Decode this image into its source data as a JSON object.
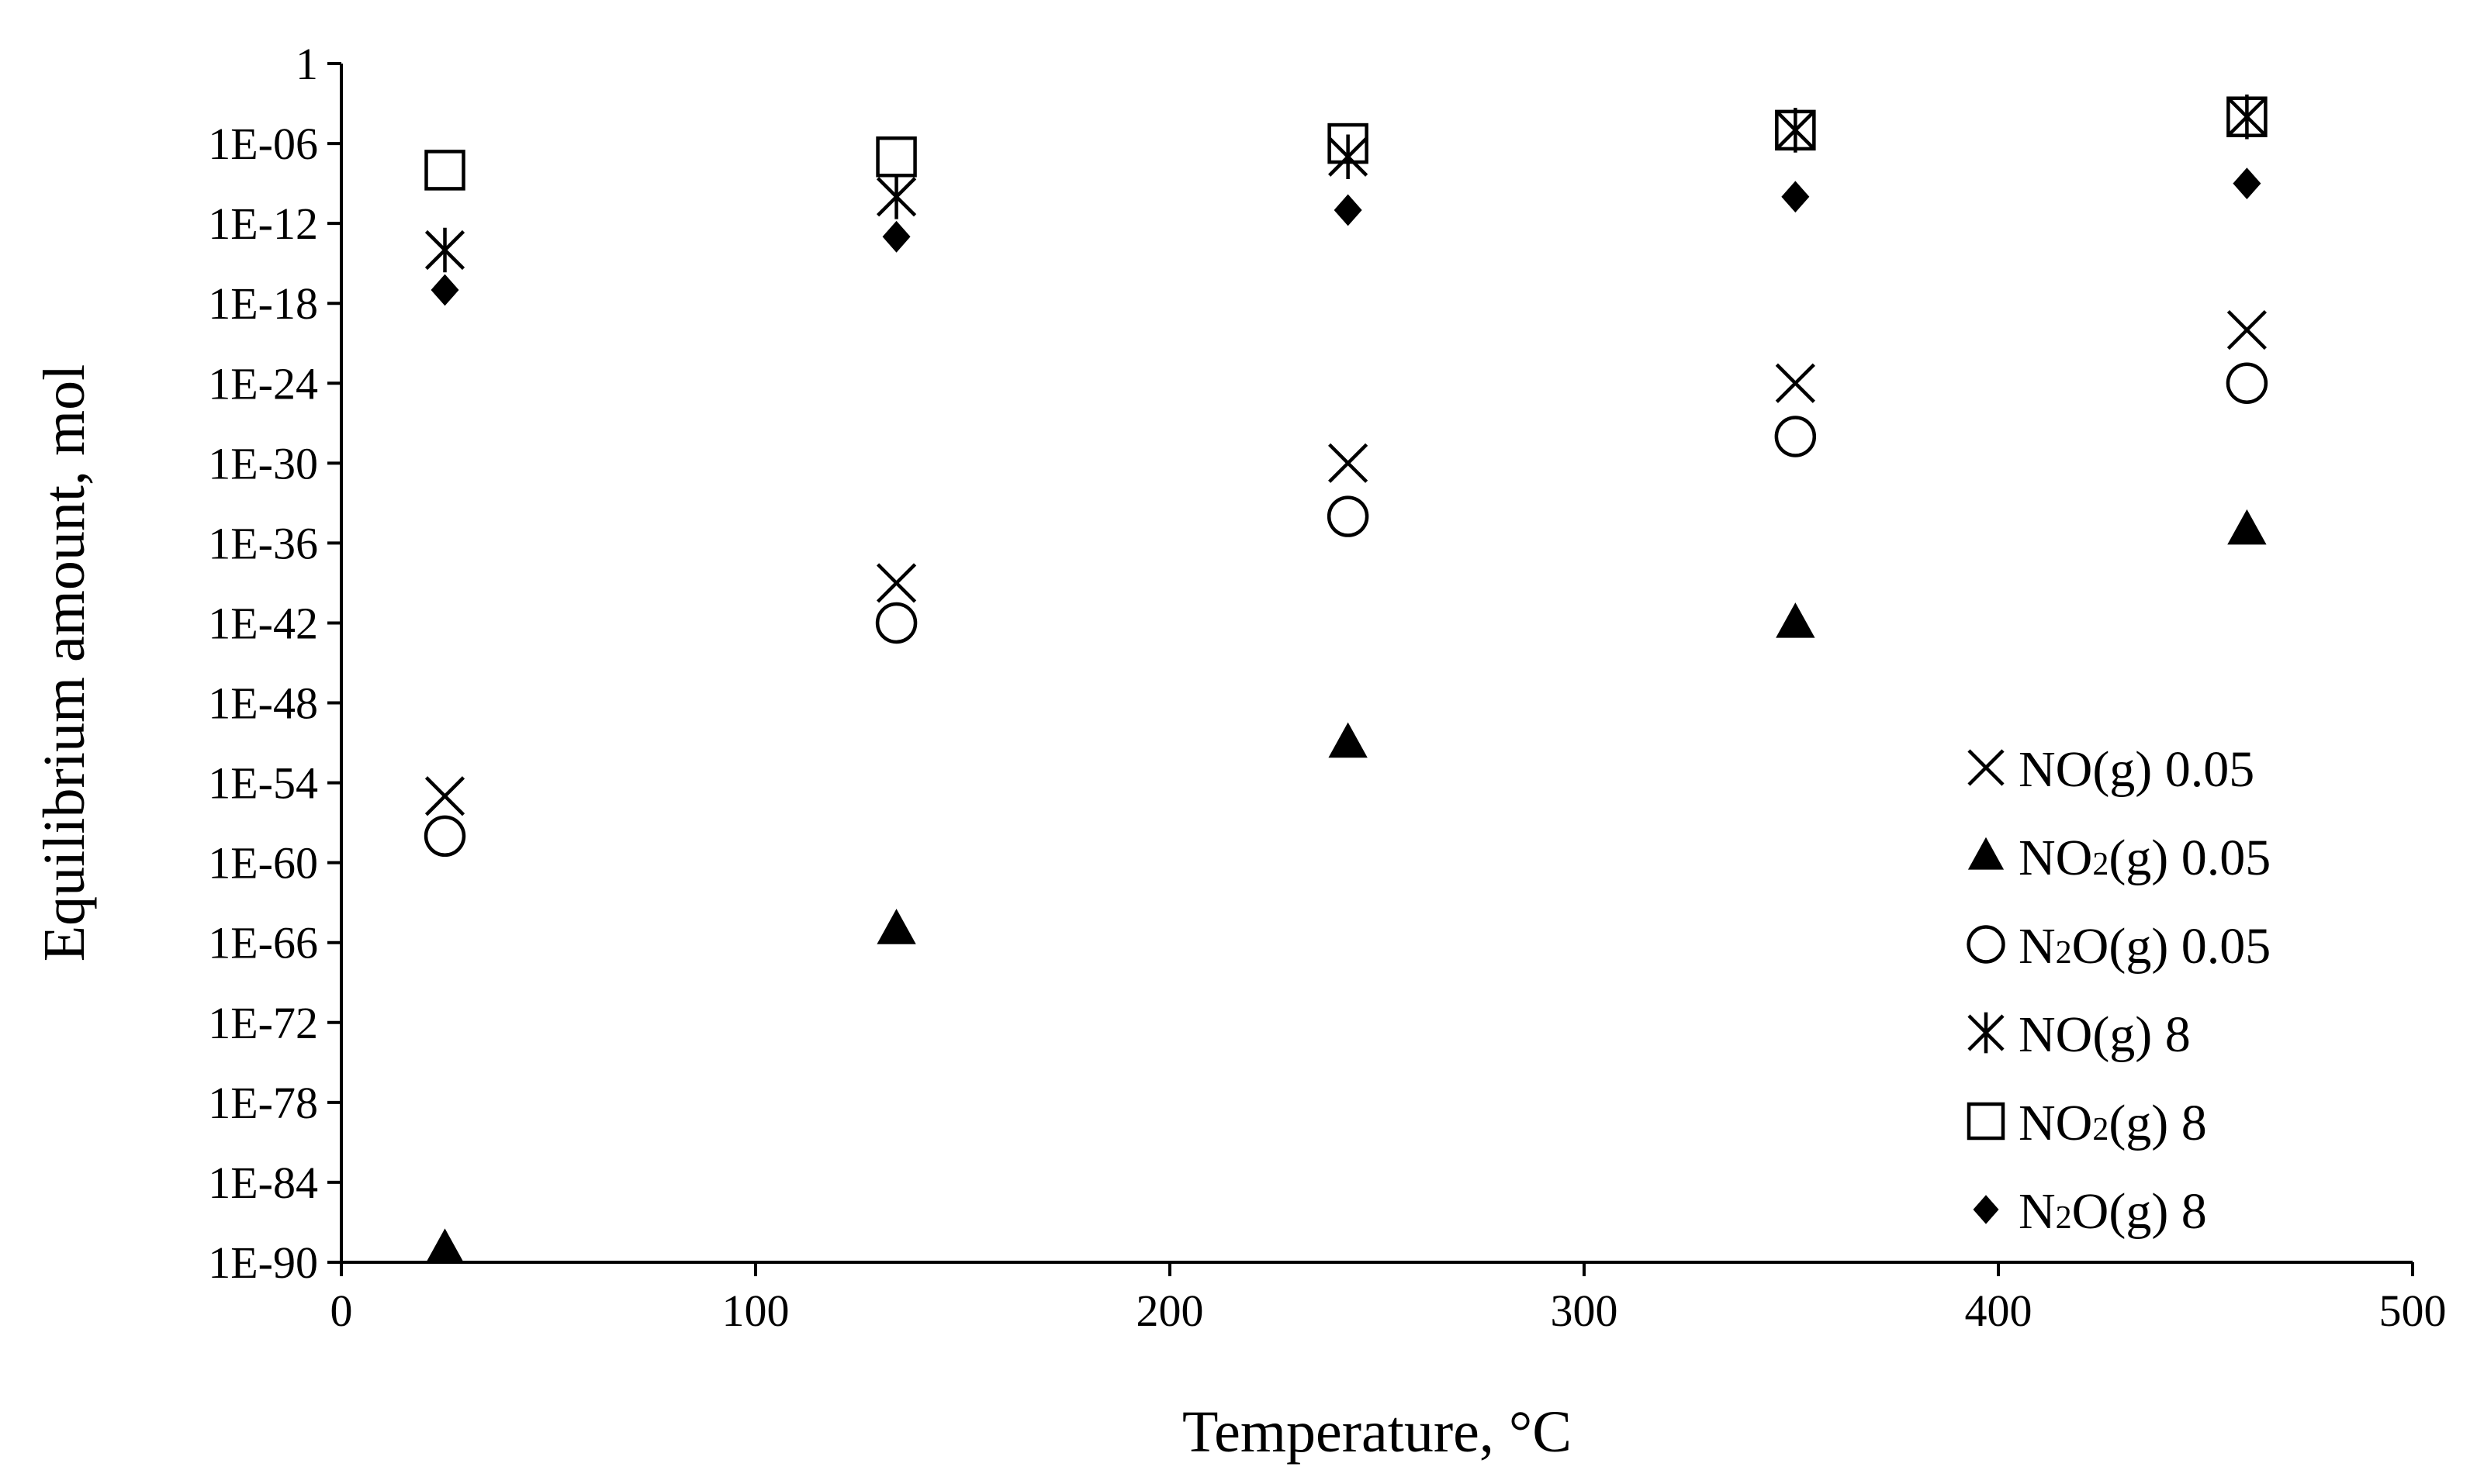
{
  "chart_data": {
    "type": "scatter",
    "title": "",
    "xlabel": "Temperature, °C",
    "ylabel": "Equilibrium amount, mol",
    "xlim": [
      0,
      500
    ],
    "ylim": [
      1e-90,
      1
    ],
    "yscale": "log",
    "x_ticks": [
      0,
      100,
      200,
      300,
      400,
      500
    ],
    "x_tick_labels": [
      "0",
      "100",
      "200",
      "300",
      "400",
      "500"
    ],
    "y_ticks": [
      1,
      1e-06,
      1e-12,
      1e-18,
      1e-24,
      1e-30,
      1e-36,
      1e-42,
      1e-48,
      1e-54,
      1e-60,
      1e-66,
      1e-72,
      1e-78,
      1e-84,
      1e-90
    ],
    "y_tick_labels": [
      "1",
      "1E-06",
      "1E-12",
      "1E-18",
      "1E-24",
      "1E-30",
      "1E-36",
      "1E-42",
      "1E-48",
      "1E-54",
      "1E-60",
      "1E-66",
      "1E-72",
      "1E-78",
      "1E-84",
      "1E-90"
    ],
    "grid": false,
    "legend_position": "bottom-right",
    "x": [
      25,
      134,
      243,
      351,
      460
    ],
    "series": [
      {
        "name": "NO(g) 0.05",
        "base": "NO",
        "sub": "",
        "rest": "(g) 0.05",
        "marker": "x",
        "values": [
          1e-55,
          1e-39,
          1e-30,
          1e-24,
          1e-20
        ]
      },
      {
        "name": "NO2(g) 0.05",
        "base": "NO",
        "sub": "2",
        "rest": "(g) 0.05",
        "marker": "triangle",
        "values": [
          1e-89,
          1e-65,
          1e-51,
          1e-42,
          1e-35
        ]
      },
      {
        "name": "N2O(g) 0.05",
        "base": "N",
        "sub": "2",
        "rest": "O(g) 0.05",
        "marker": "circle",
        "values": [
          1e-58,
          1e-42,
          1e-34,
          1e-28,
          1e-24
        ]
      },
      {
        "name": "NO(g) 8",
        "base": "NO",
        "sub": "",
        "rest": "(g) 8",
        "marker": "asterisk",
        "values": [
          1e-14,
          1e-10,
          1e-07,
          1e-05,
          0.0001
        ]
      },
      {
        "name": "NO2(g) 8",
        "base": "NO",
        "sub": "2",
        "rest": "(g) 8",
        "marker": "square",
        "values": [
          1e-08,
          1e-07,
          1e-06,
          1e-05,
          0.0001
        ]
      },
      {
        "name": "N2O(g) 8",
        "base": "N",
        "sub": "2",
        "rest": "O(g) 8",
        "marker": "diamond",
        "values": [
          1e-17,
          1e-13,
          1e-11,
          1e-10,
          1e-09
        ]
      }
    ]
  }
}
